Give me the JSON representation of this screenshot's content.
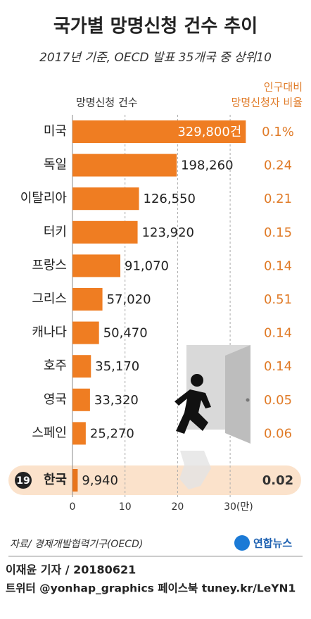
{
  "chart_data": {
    "type": "bar",
    "orientation": "horizontal",
    "title": "국가별 망명신청 건수 추이",
    "subtitle": "2017년 기준, OECD 발표 35개국 중 상위10",
    "value_header": "망명신청 건수",
    "ratio_header": [
      "인구대비",
      "망명신청자 비율"
    ],
    "categories": [
      "미국",
      "독일",
      "이탈리아",
      "터키",
      "프랑스",
      "그리스",
      "캐나다",
      "호주",
      "영국",
      "스페인",
      "한국"
    ],
    "values": [
      32.98,
      19.826,
      12.655,
      12.392,
      9.107,
      5.702,
      5.047,
      3.517,
      3.332,
      2.527,
      0.994
    ],
    "value_labels": [
      "329,800건",
      "198,260",
      "126,550",
      "123,920",
      "91,070",
      "57,020",
      "50,470",
      "35,170",
      "33,320",
      "25,270",
      "9,940"
    ],
    "ratios": [
      "0.1%",
      "0.24",
      "0.21",
      "0.15",
      "0.14",
      "0.51",
      "0.14",
      "0.14",
      "0.05",
      "0.06",
      "0.02"
    ],
    "highlight_rank": "19",
    "color": "#ef7d22",
    "highlight_color": "#e8741b",
    "xlim": [
      0,
      33
    ],
    "xticks": [
      0,
      10,
      20,
      {
        "value": 30,
        "label": "30(만)"
      }
    ],
    "grid": true,
    "source": "자료/ 경제개발협력기구(OECD)",
    "logo": "연합뉴스",
    "byline": "이재윤 기자 / 20180621",
    "social": "트위터 @yonhap_graphics  페이스북 tuney.kr/LeYN1"
  }
}
